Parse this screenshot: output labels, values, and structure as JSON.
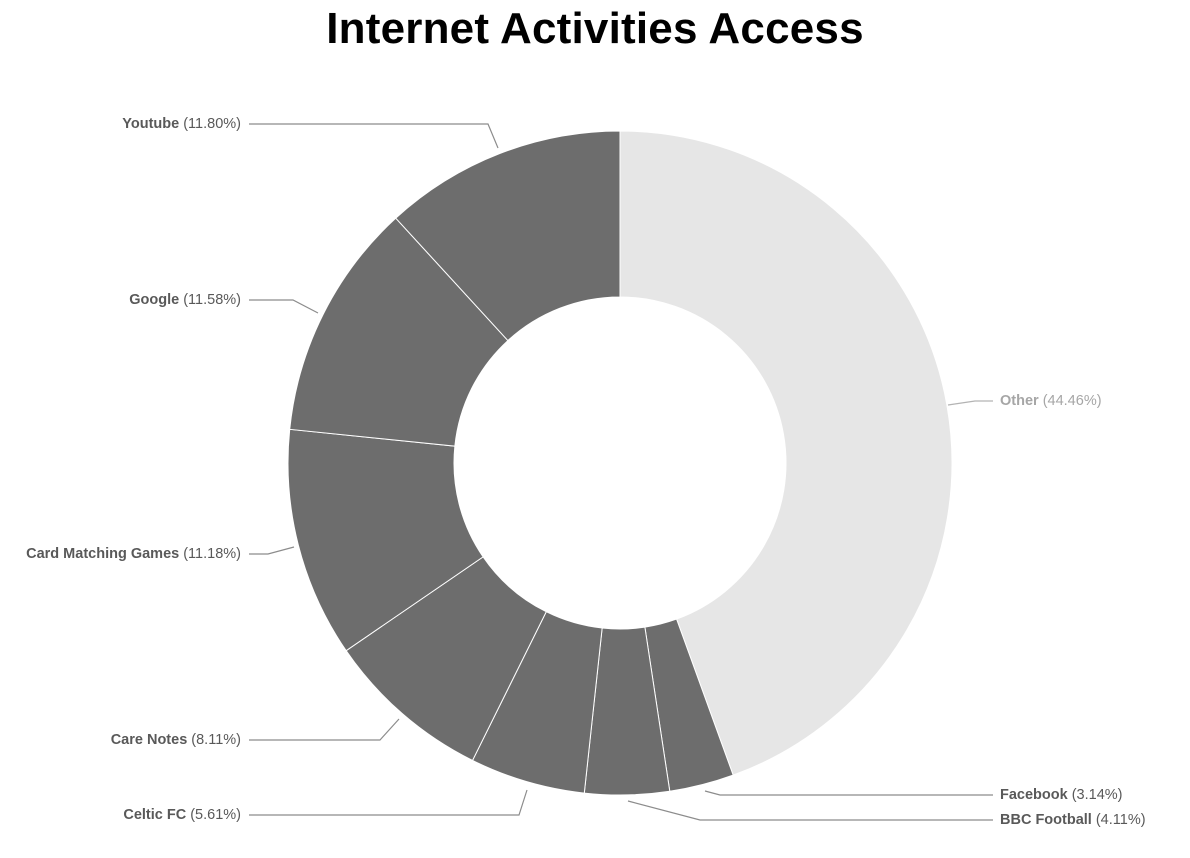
{
  "chart_data": {
    "type": "pie",
    "donut": true,
    "title": "Internet Activities Access",
    "slices": [
      {
        "label": "Other",
        "value": 44.46,
        "pct_text": "(44.46%)",
        "color": "#e6e6e6",
        "label_color": "#a6a6a6"
      },
      {
        "label": "Facebook",
        "value": 3.14,
        "pct_text": "(3.14%)",
        "color": "#6d6d6d",
        "label_color": "#595959"
      },
      {
        "label": "BBC Football",
        "value": 4.11,
        "pct_text": "(4.11%)",
        "color": "#6d6d6d",
        "label_color": "#595959"
      },
      {
        "label": "Celtic FC",
        "value": 5.61,
        "pct_text": "(5.61%)",
        "color": "#6d6d6d",
        "label_color": "#595959"
      },
      {
        "label": "Care Notes",
        "value": 8.11,
        "pct_text": "(8.11%)",
        "color": "#6d6d6d",
        "label_color": "#595959"
      },
      {
        "label": "Card Matching Games",
        "value": 11.18,
        "pct_text": "(11.18%)",
        "color": "#6d6d6d",
        "label_color": "#595959"
      },
      {
        "label": "Google",
        "value": 11.58,
        "pct_text": "(11.58%)",
        "color": "#6d6d6d",
        "label_color": "#595959"
      },
      {
        "label": "Youtube",
        "value": 11.8,
        "pct_text": "(11.80%)",
        "color": "#6d6d6d",
        "label_color": "#595959"
      }
    ]
  }
}
